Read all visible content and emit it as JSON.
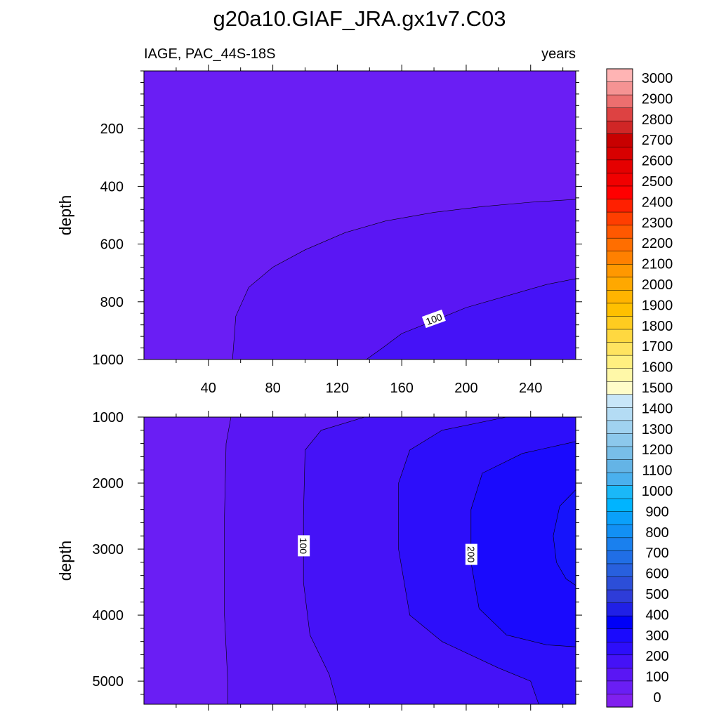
{
  "chart_data": {
    "type": "contour",
    "title": "g20a10.GIAF_JRA.gx1v7.C03",
    "left_string": "IAGE, PAC_44S-18S",
    "right_string": "years",
    "x": {
      "ticks": [
        40,
        80,
        120,
        160,
        200,
        240
      ],
      "range": [
        0,
        268
      ]
    },
    "panels": [
      {
        "ylabel": "depth",
        "yrange": [
          0,
          1000
        ],
        "yticks": [
          200,
          400,
          600,
          800,
          1000
        ],
        "contour_labels": [
          {
            "text": "100",
            "x": 180,
            "y": 860
          }
        ],
        "regions": [
          {
            "color": "#6a1ef4",
            "points": [
              [
                0,
                0
              ],
              [
                268,
                0
              ],
              [
                268,
                1000
              ],
              [
                0,
                1000
              ]
            ]
          },
          {
            "color": "#5a16f4",
            "points": [
              [
                55,
                1000
              ],
              [
                57,
                850
              ],
              [
                65,
                750
              ],
              [
                80,
                680
              ],
              [
                100,
                620
              ],
              [
                125,
                560
              ],
              [
                150,
                520
              ],
              [
                180,
                490
              ],
              [
                210,
                470
              ],
              [
                240,
                455
              ],
              [
                268,
                445
              ],
              [
                268,
                1000
              ]
            ]
          },
          {
            "color": "#4512f7",
            "points": [
              [
                138,
                1000
              ],
              [
                148,
                960
              ],
              [
                160,
                910
              ],
              [
                178,
                870
              ],
              [
                200,
                820
              ],
              [
                225,
                780
              ],
              [
                250,
                740
              ],
              [
                268,
                720
              ],
              [
                268,
                1000
              ]
            ]
          }
        ]
      },
      {
        "ylabel": "depth",
        "yrange": [
          1000,
          5350
        ],
        "yticks": [
          1000,
          2000,
          3000,
          4000,
          5000
        ],
        "contour_labels": [
          {
            "text": "100",
            "x": 99,
            "y": 2950
          },
          {
            "text": "200",
            "x": 203,
            "y": 3080
          }
        ],
        "regions": [
          {
            "color": "#6a1ef4",
            "points": [
              [
                0,
                1000
              ],
              [
                268,
                1000
              ],
              [
                268,
                5350
              ],
              [
                0,
                5350
              ]
            ]
          },
          {
            "color": "#5a16f4",
            "points": [
              [
                54,
                1000
              ],
              [
                51,
                1400
              ],
              [
                50,
                2500
              ],
              [
                50,
                4000
              ],
              [
                52,
                5000
              ],
              [
                52,
                5350
              ],
              [
                268,
                5350
              ],
              [
                268,
                1000
              ]
            ]
          },
          {
            "color": "#4512f7",
            "points": [
              [
                137,
                1000
              ],
              [
                110,
                1200
              ],
              [
                100,
                1500
              ],
              [
                99,
                2500
              ],
              [
                99,
                3500
              ],
              [
                103,
                4300
              ],
              [
                115,
                4900
              ],
              [
                120,
                5350
              ],
              [
                268,
                5350
              ],
              [
                268,
                1000
              ]
            ]
          },
          {
            "color": "#2d0efa",
            "points": [
              [
                268,
                1000
              ],
              [
                225,
                1000
              ],
              [
                185,
                1200
              ],
              [
                165,
                1500
              ],
              [
                158,
                2000
              ],
              [
                158,
                3000
              ],
              [
                165,
                4000
              ],
              [
                185,
                4400
              ],
              [
                220,
                4800
              ],
              [
                240,
                5000
              ],
              [
                245,
                5350
              ],
              [
                268,
                5350
              ]
            ]
          },
          {
            "color": "#1a0afd",
            "points": [
              [
                268,
                1370
              ],
              [
                235,
                1550
              ],
              [
                210,
                1850
              ],
              [
                203,
                2400
              ],
              [
                203,
                3200
              ],
              [
                208,
                3900
              ],
              [
                225,
                4300
              ],
              [
                250,
                4450
              ],
              [
                268,
                4480
              ]
            ]
          },
          {
            "color": "#1614fb",
            "points": [
              [
                268,
                2100
              ],
              [
                258,
                2350
              ],
              [
                254,
                2800
              ],
              [
                256,
                3200
              ],
              [
                262,
                3450
              ],
              [
                268,
                3550
              ]
            ]
          }
        ]
      }
    ],
    "colorbar": {
      "labels": [
        "3000",
        "2900",
        "2800",
        "2700",
        "2600",
        "2500",
        "2400",
        "2300",
        "2200",
        "2100",
        "2000",
        "1900",
        "1800",
        "1700",
        "1600",
        "1500",
        "1400",
        "1300",
        "1200",
        "1100",
        "1000",
        "900",
        "800",
        "700",
        "600",
        "500",
        "400",
        "300",
        "200",
        "100",
        "0"
      ],
      "colors_top_to_bottom": [
        "#ffb4b4",
        "#f59393",
        "#ec6f6f",
        "#dd4242",
        "#d02626",
        "#c80000",
        "#d80000",
        "#e50000",
        "#f10000",
        "#ff0000",
        "#ff2000",
        "#ff3e00",
        "#ff5800",
        "#ff6e00",
        "#ff8000",
        "#ff9800",
        "#ffa800",
        "#ffb400",
        "#ffc000",
        "#ffcc20",
        "#ffd840",
        "#ffe460",
        "#fff080",
        "#fff8a8",
        "#fffcc8",
        "#c8e6f8",
        "#b4dcf4",
        "#a0d2f0",
        "#8cc8ec",
        "#78bee8",
        "#64b4e6",
        "#4ab0ee",
        "#1ab8f8",
        "#00b4ff",
        "#0aa0fa",
        "#1290f4",
        "#1a80ee",
        "#206ee6",
        "#2860de",
        "#2c4ed8",
        "#2e3cd8",
        "#2020e6",
        "#0000f8",
        "#1a0afd",
        "#2d0efa",
        "#4512f7",
        "#5a16f4",
        "#6a1ef4",
        "#8020ee"
      ]
    }
  }
}
